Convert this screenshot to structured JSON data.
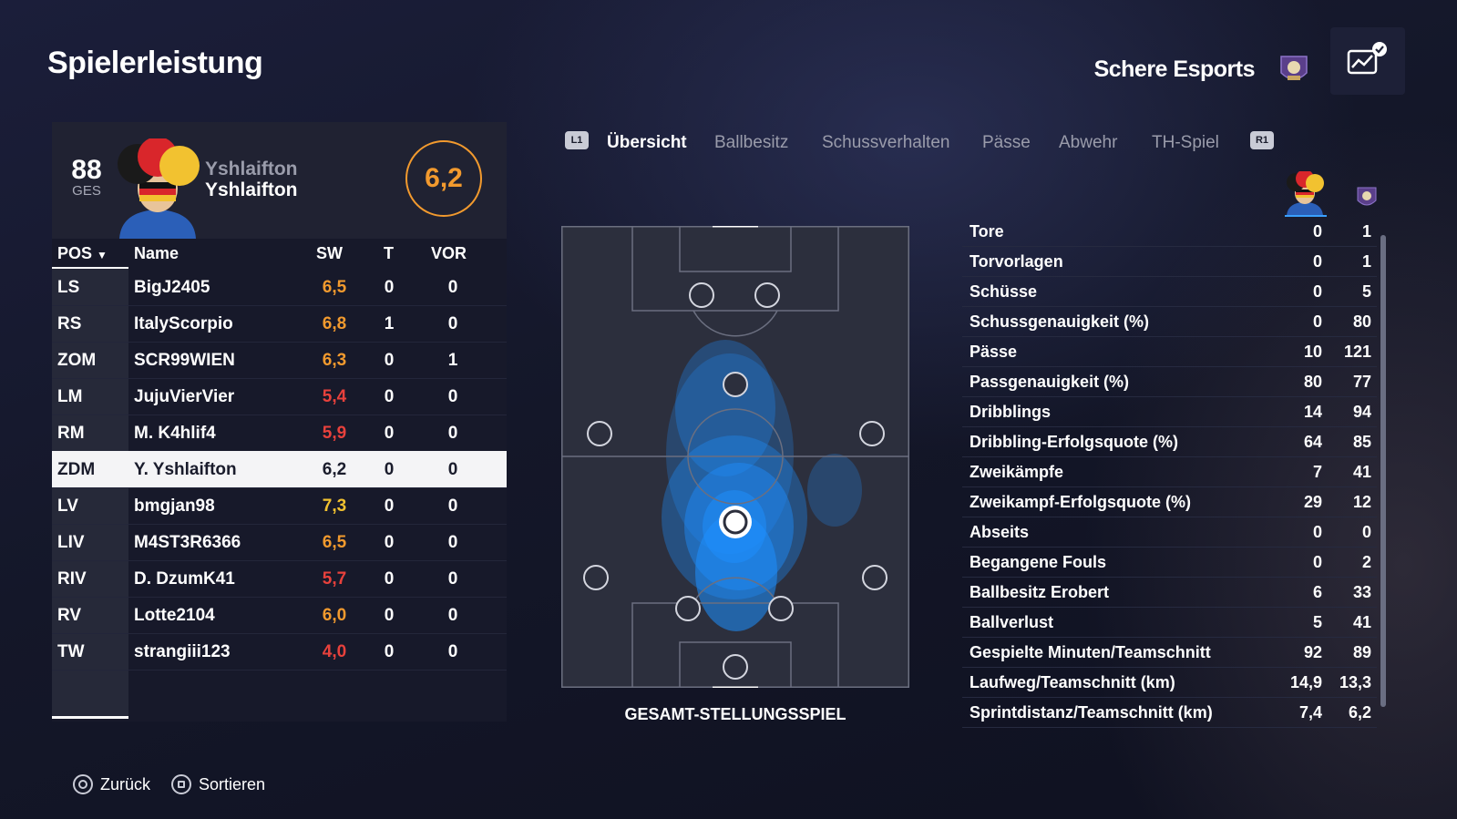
{
  "page": {
    "title": "Spielerleistung"
  },
  "team": {
    "name": "Schere Esports"
  },
  "player_card": {
    "overall": "88",
    "overall_label": "GES",
    "name_line1": "Yshlaifton",
    "name_line2": "Yshlaifton",
    "rating": "6,2"
  },
  "table": {
    "headers": {
      "pos": "POS",
      "name": "Name",
      "sw": "SW",
      "t": "T",
      "vor": "VOR"
    },
    "rows": [
      {
        "pos": "LS",
        "name": "BigJ2405",
        "sw": "6,5",
        "t": "0",
        "vor": "0",
        "color": "#f29a2e"
      },
      {
        "pos": "RS",
        "name": "ItalyScorpio",
        "sw": "6,8",
        "t": "1",
        "vor": "0",
        "color": "#f29a2e"
      },
      {
        "pos": "ZOM",
        "name": "SCR99WIEN",
        "sw": "6,3",
        "t": "0",
        "vor": "1",
        "color": "#f29a2e"
      },
      {
        "pos": "LM",
        "name": "JujuVierVier",
        "sw": "5,4",
        "t": "0",
        "vor": "0",
        "color": "#e8413c"
      },
      {
        "pos": "RM",
        "name": "M. K4hlif4",
        "sw": "5,9",
        "t": "0",
        "vor": "0",
        "color": "#e8413c"
      },
      {
        "pos": "ZDM",
        "name": "Y. Yshlaifton",
        "sw": "6,2",
        "t": "0",
        "vor": "0",
        "color": "#1a1c2c"
      },
      {
        "pos": "LV",
        "name": "bmgjan98",
        "sw": "7,3",
        "t": "0",
        "vor": "0",
        "color": "#f2c230"
      },
      {
        "pos": "LIV",
        "name": "M4ST3R6366",
        "sw": "6,5",
        "t": "0",
        "vor": "0",
        "color": "#f29a2e"
      },
      {
        "pos": "RIV",
        "name": "D. DzumK41",
        "sw": "5,7",
        "t": "0",
        "vor": "0",
        "color": "#e8413c"
      },
      {
        "pos": "RV",
        "name": "Lotte2104",
        "sw": "6,0",
        "t": "0",
        "vor": "0",
        "color": "#f29a2e"
      },
      {
        "pos": "TW",
        "name": "strangiii123",
        "sw": "4,0",
        "t": "0",
        "vor": "0",
        "color": "#e8413c"
      }
    ],
    "selected_index": 5
  },
  "tabs": {
    "left_badge": "L1",
    "right_badge": "R1",
    "items": [
      {
        "label": "Übersicht",
        "active": true
      },
      {
        "label": "Ballbesitz",
        "active": false
      },
      {
        "label": "Schussverhalten",
        "active": false
      },
      {
        "label": "Pässe",
        "active": false
      },
      {
        "label": "Abwehr",
        "active": false
      },
      {
        "label": "TH-Spiel",
        "active": false
      }
    ]
  },
  "pitch": {
    "label": "GESAMT-STELLUNGSSPIEL"
  },
  "stats": [
    {
      "label": "Tore",
      "player": "0",
      "team": "1"
    },
    {
      "label": "Torvorlagen",
      "player": "0",
      "team": "1"
    },
    {
      "label": "Schüsse",
      "player": "0",
      "team": "5"
    },
    {
      "label": "Schussgenauigkeit (%)",
      "player": "0",
      "team": "80"
    },
    {
      "label": "Pässe",
      "player": "10",
      "team": "121"
    },
    {
      "label": "Passgenauigkeit (%)",
      "player": "80",
      "team": "77"
    },
    {
      "label": "Dribblings",
      "player": "14",
      "team": "94"
    },
    {
      "label": "Dribbling-Erfolgsquote (%)",
      "player": "64",
      "team": "85"
    },
    {
      "label": "Zweikämpfe",
      "player": "7",
      "team": "41"
    },
    {
      "label": "Zweikampf-Erfolgsquote (%)",
      "player": "29",
      "team": "12"
    },
    {
      "label": "Abseits",
      "player": "0",
      "team": "0"
    },
    {
      "label": "Begangene Fouls",
      "player": "0",
      "team": "2"
    },
    {
      "label": "Ballbesitz Erobert",
      "player": "6",
      "team": "33"
    },
    {
      "label": "Ballverlust",
      "player": "5",
      "team": "41"
    },
    {
      "label": "Gespielte Minuten/Teamschnitt",
      "player": "92",
      "team": "89"
    },
    {
      "label": "Laufweg/Teamschnitt (km)",
      "player": "14,9",
      "team": "13,3"
    },
    {
      "label": "Sprintdistanz/Teamschnitt (km)",
      "player": "7,4",
      "team": "6,2"
    }
  ],
  "footer": {
    "back_label": "Zurück",
    "sort_label": "Sortieren"
  },
  "colors": {
    "accent": "#f29a2e",
    "heat": "#1e8fff"
  }
}
